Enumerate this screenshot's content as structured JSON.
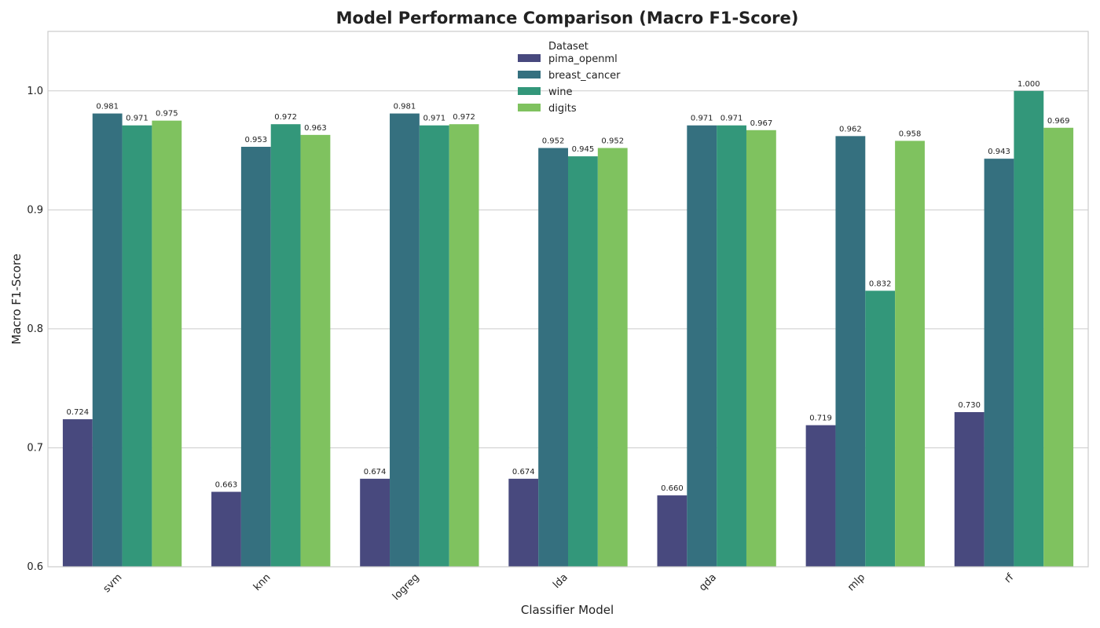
{
  "chart_data": {
    "type": "bar",
    "title": "Model Performance Comparison (Macro F1-Score)",
    "xlabel": "Classifier Model",
    "ylabel": "Macro F1-Score",
    "ylim": [
      0.6,
      1.05
    ],
    "yticks": [
      "0.6",
      "0.7",
      "0.8",
      "0.9",
      "1.0"
    ],
    "grid": "horizontal",
    "legend": {
      "title": "Dataset",
      "placement": "upper center"
    },
    "categories": [
      "svm",
      "knn",
      "logreg",
      "lda",
      "qda",
      "mlp",
      "rf"
    ],
    "series": [
      {
        "name": "pima_openml",
        "color": "#48497e",
        "values": [
          0.724,
          0.663,
          0.674,
          0.674,
          0.66,
          0.719,
          0.73
        ],
        "labels": [
          "0.724",
          "0.663",
          "0.674",
          "0.674",
          "0.660",
          "0.719",
          "0.730"
        ]
      },
      {
        "name": "breast_cancer",
        "color": "#35707f",
        "values": [
          0.981,
          0.953,
          0.981,
          0.952,
          0.971,
          0.962,
          0.943
        ],
        "labels": [
          "0.981",
          "0.953",
          "0.981",
          "0.952",
          "0.971",
          "0.962",
          "0.943"
        ]
      },
      {
        "name": "wine",
        "color": "#33977a",
        "values": [
          0.971,
          0.972,
          0.971,
          0.945,
          0.971,
          0.832,
          1.0
        ],
        "labels": [
          "0.971",
          "0.972",
          "0.971",
          "0.945",
          "0.971",
          "0.832",
          "1.000"
        ]
      },
      {
        "name": "digits",
        "color": "#7fc25f",
        "values": [
          0.975,
          0.963,
          0.972,
          0.952,
          0.967,
          0.958,
          0.969
        ],
        "labels": [
          "0.975",
          "0.963",
          "0.972",
          "0.952",
          "0.967",
          "0.958",
          "0.969"
        ]
      }
    ]
  }
}
